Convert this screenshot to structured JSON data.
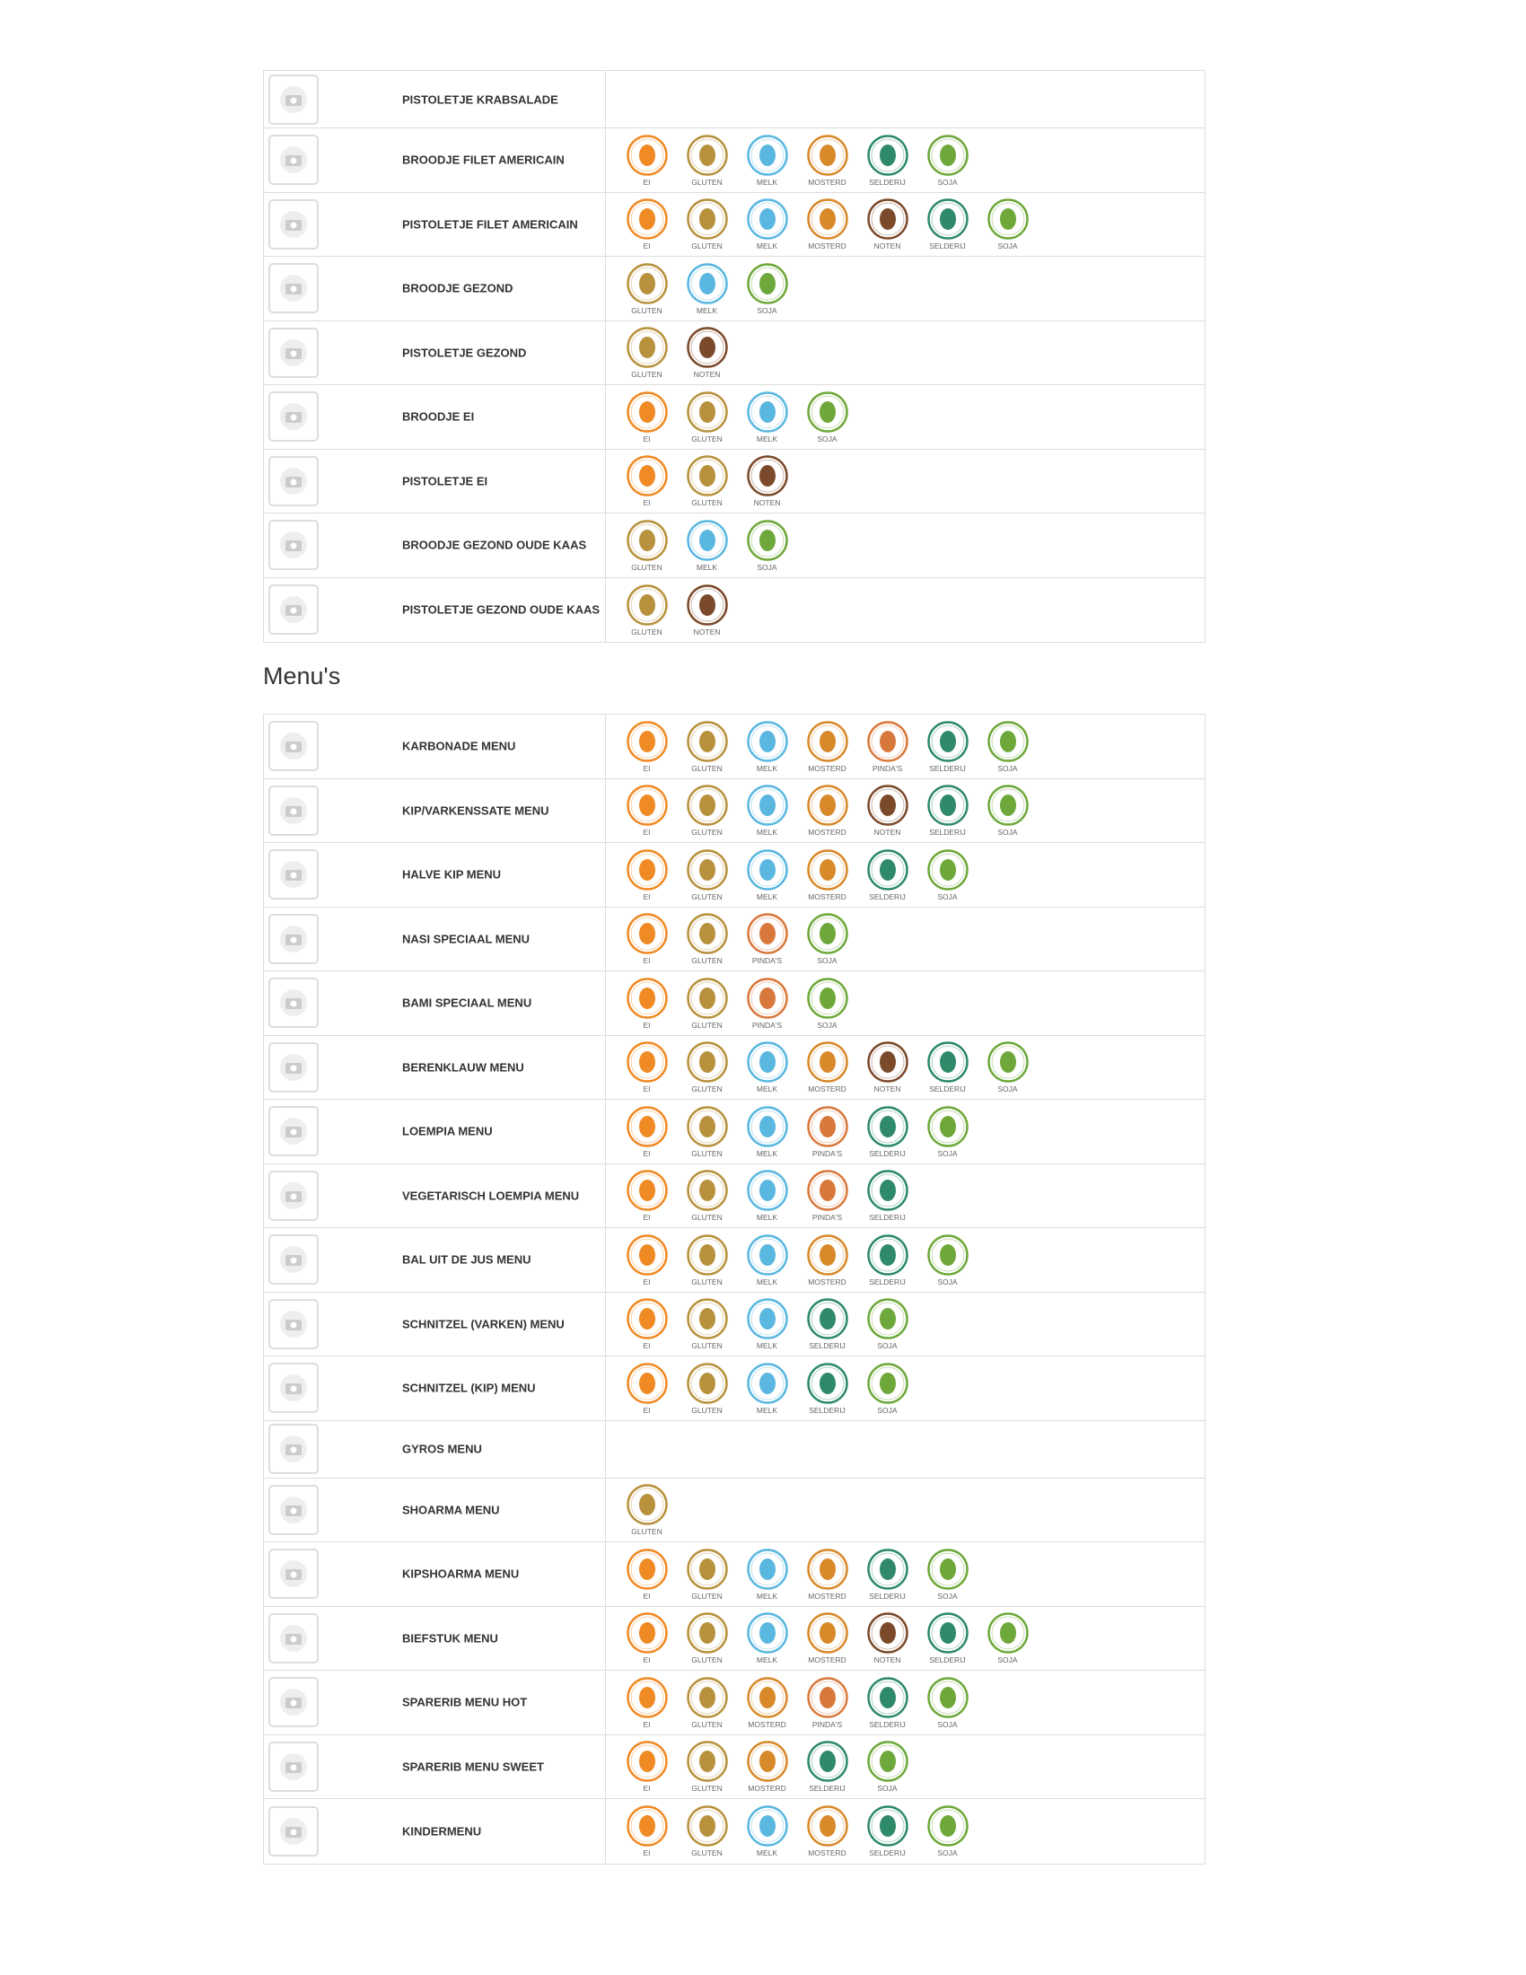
{
  "sections": [
    {
      "items": [
        {
          "name": "PISTOLETJE KRABSALADE",
          "allergens": []
        },
        {
          "name": "BROODJE FILET AMERICAIN",
          "allergens": [
            "EI",
            "GLUTEN",
            "MELK",
            "MOSTERD",
            "SELDERIJ",
            "SOJA"
          ]
        },
        {
          "name": "PISTOLETJE FILET AMERICAIN",
          "allergens": [
            "EI",
            "GLUTEN",
            "MELK",
            "MOSTERD",
            "NOTEN",
            "SELDERIJ",
            "SOJA"
          ]
        },
        {
          "name": "BROODJE GEZOND",
          "allergens": [
            "GLUTEN",
            "MELK",
            "SOJA"
          ]
        },
        {
          "name": "PISTOLETJE GEZOND",
          "allergens": [
            "GLUTEN",
            "NOTEN"
          ]
        },
        {
          "name": "BROODJE EI",
          "allergens": [
            "EI",
            "GLUTEN",
            "MELK",
            "SOJA"
          ]
        },
        {
          "name": "PISTOLETJE EI",
          "allergens": [
            "EI",
            "GLUTEN",
            "NOTEN"
          ]
        },
        {
          "name": "BROODJE GEZOND OUDE KAAS",
          "allergens": [
            "GLUTEN",
            "MELK",
            "SOJA"
          ]
        },
        {
          "name": "PISTOLETJE GEZOND OUDE KAAS",
          "allergens": [
            "GLUTEN",
            "NOTEN"
          ]
        }
      ]
    },
    {
      "heading": "Menu's",
      "items": [
        {
          "name": "KARBONADE MENU",
          "allergens": [
            "EI",
            "GLUTEN",
            "MELK",
            "MOSTERD",
            "PINDA'S",
            "SELDERIJ",
            "SOJA"
          ]
        },
        {
          "name": "KIP/VARKENSSATE MENU",
          "allergens": [
            "EI",
            "GLUTEN",
            "MELK",
            "MOSTERD",
            "NOTEN",
            "SELDERIJ",
            "SOJA"
          ]
        },
        {
          "name": "HALVE KIP MENU",
          "allergens": [
            "EI",
            "GLUTEN",
            "MELK",
            "MOSTERD",
            "SELDERIJ",
            "SOJA"
          ]
        },
        {
          "name": "NASI SPECIAAL MENU",
          "allergens": [
            "EI",
            "GLUTEN",
            "PINDA'S",
            "SOJA"
          ]
        },
        {
          "name": "BAMI SPECIAAL MENU",
          "allergens": [
            "EI",
            "GLUTEN",
            "PINDA'S",
            "SOJA"
          ]
        },
        {
          "name": "BERENKLAUW MENU",
          "allergens": [
            "EI",
            "GLUTEN",
            "MELK",
            "MOSTERD",
            "NOTEN",
            "SELDERIJ",
            "SOJA"
          ]
        },
        {
          "name": "LOEMPIA MENU",
          "allergens": [
            "EI",
            "GLUTEN",
            "MELK",
            "PINDA'S",
            "SELDERIJ",
            "SOJA"
          ]
        },
        {
          "name": "VEGETARISCH LOEMPIA MENU",
          "allergens": [
            "EI",
            "GLUTEN",
            "MELK",
            "PINDA'S",
            "SELDERIJ"
          ]
        },
        {
          "name": "BAL UIT DE JUS MENU",
          "allergens": [
            "EI",
            "GLUTEN",
            "MELK",
            "MOSTERD",
            "SELDERIJ",
            "SOJA"
          ]
        },
        {
          "name": "SCHNITZEL (VARKEN) MENU",
          "allergens": [
            "EI",
            "GLUTEN",
            "MELK",
            "SELDERIJ",
            "SOJA"
          ]
        },
        {
          "name": "SCHNITZEL (KIP) MENU",
          "allergens": [
            "EI",
            "GLUTEN",
            "MELK",
            "SELDERIJ",
            "SOJA"
          ]
        },
        {
          "name": "GYROS MENU",
          "allergens": []
        },
        {
          "name": "SHOARMA MENU",
          "allergens": [
            "GLUTEN"
          ]
        },
        {
          "name": "KIPSHOARMA MENU",
          "allergens": [
            "EI",
            "GLUTEN",
            "MELK",
            "MOSTERD",
            "SELDERIJ",
            "SOJA"
          ]
        },
        {
          "name": "BIEFSTUK MENU",
          "allergens": [
            "EI",
            "GLUTEN",
            "MELK",
            "MOSTERD",
            "NOTEN",
            "SELDERIJ",
            "SOJA"
          ]
        },
        {
          "name": "SPARERIB MENU HOT",
          "allergens": [
            "EI",
            "GLUTEN",
            "MOSTERD",
            "PINDA'S",
            "SELDERIJ",
            "SOJA"
          ]
        },
        {
          "name": "SPARERIB MENU SWEET",
          "allergens": [
            "EI",
            "GLUTEN",
            "MOSTERD",
            "SELDERIJ",
            "SOJA"
          ]
        },
        {
          "name": "KINDERMENU",
          "allergens": [
            "EI",
            "GLUTEN",
            "MELK",
            "MOSTERD",
            "SELDERIJ",
            "SOJA"
          ]
        }
      ]
    }
  ],
  "allergen_colors": {
    "EI": "#f08a24",
    "GLUTEN": "#b8913c",
    "MELK": "#5ab7e0",
    "MOSTERD": "#d8892a",
    "NOTEN": "#7b4a2b",
    "SELDERIJ": "#2e8a68",
    "SOJA": "#6ea83a",
    "PINDA'S": "#d9783c"
  }
}
